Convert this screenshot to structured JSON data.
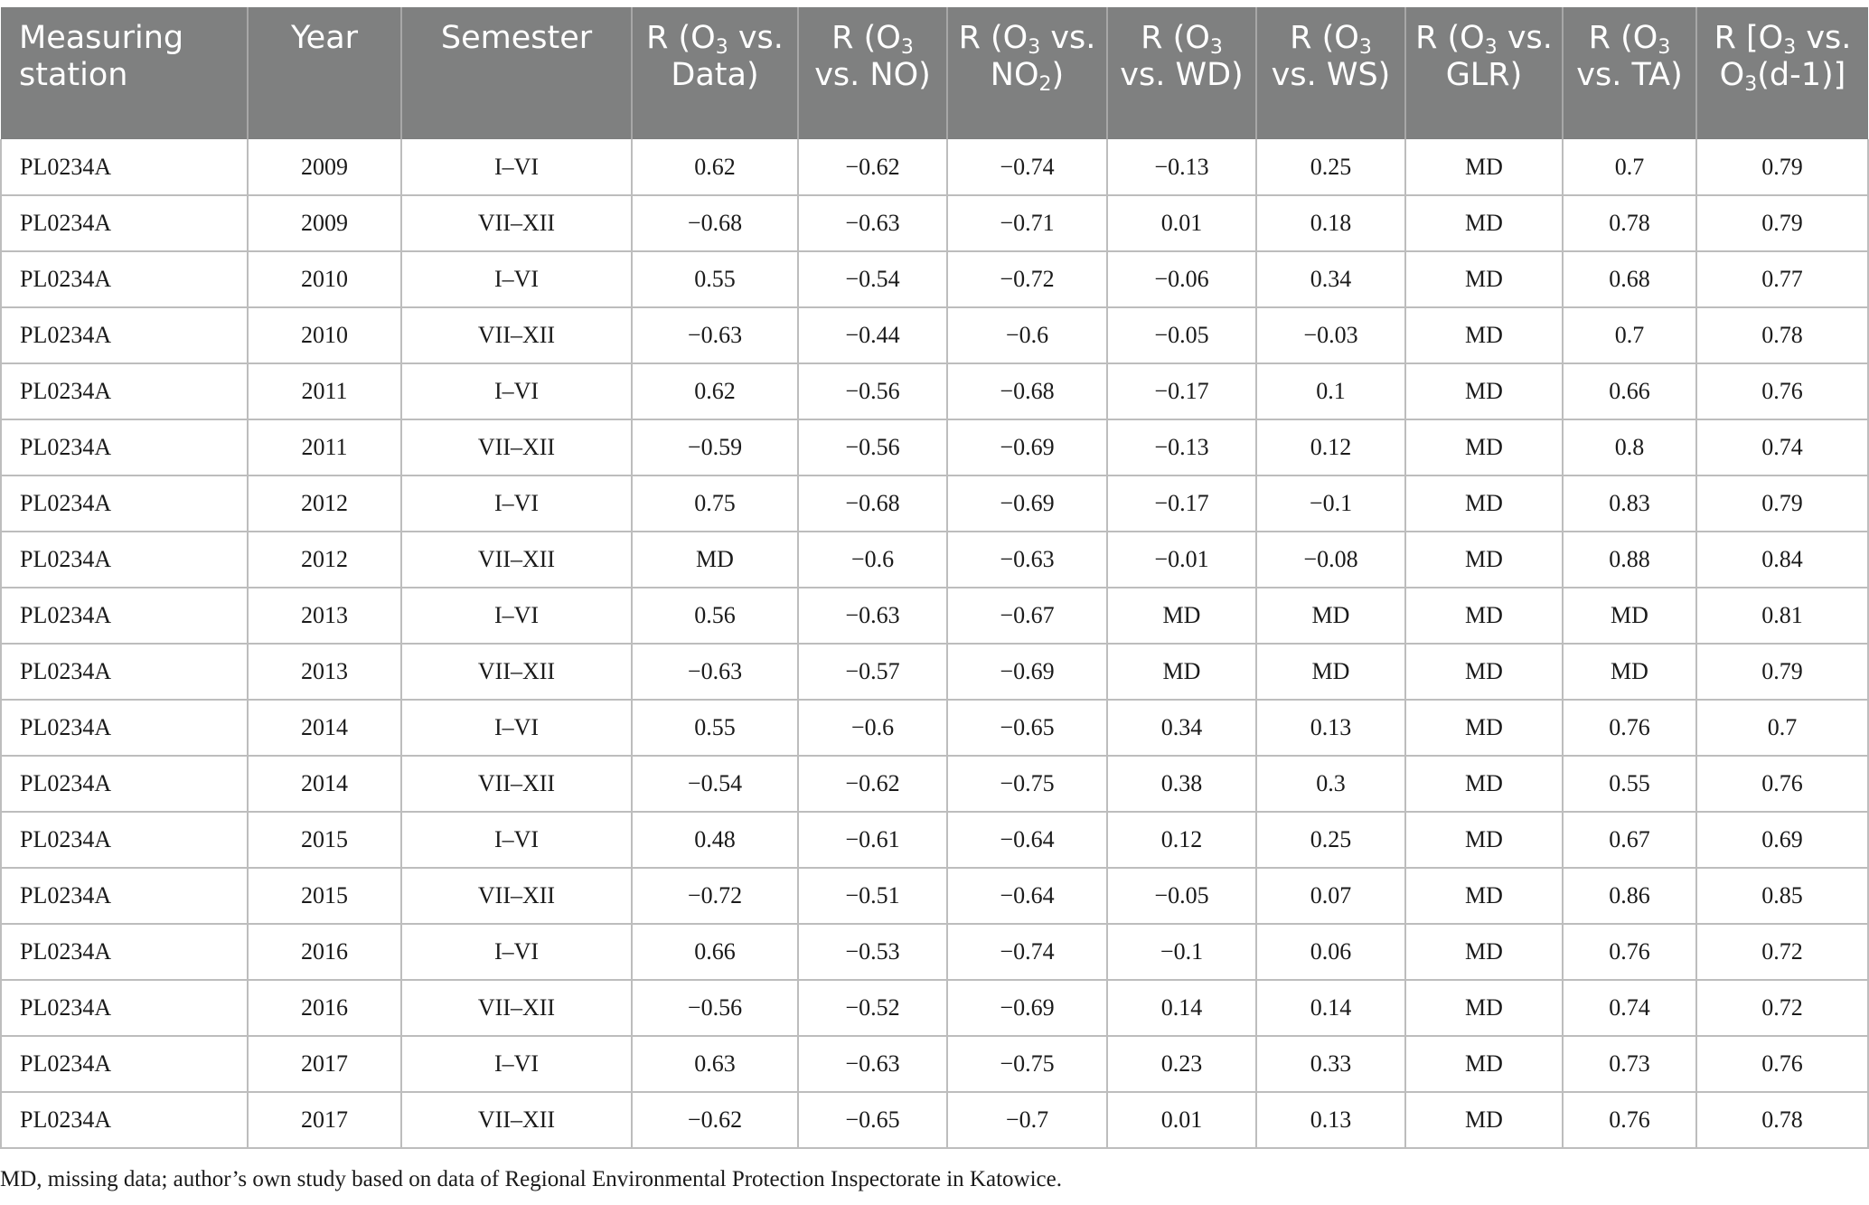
{
  "table": {
    "headers": {
      "station": "Measuring station",
      "year": "Year",
      "semester": "Semester",
      "r_data": {
        "pre": "R (O",
        "sub": "3",
        "post": " vs. Data)"
      },
      "r_no": {
        "pre": "R (O",
        "sub": "3",
        "post": " vs. NO)"
      },
      "r_no2": {
        "pre": "R (O",
        "sub": "3",
        "mid": " vs. NO",
        "sub2": "2",
        "post": ")"
      },
      "r_wd": {
        "pre": "R (O",
        "sub": "3",
        "post": " vs. WD)"
      },
      "r_ws": {
        "pre": "R (O",
        "sub": "3",
        "post": " vs. WS)"
      },
      "r_glr": {
        "pre": "R (O",
        "sub": "3",
        "post": " vs. GLR)"
      },
      "r_ta": {
        "pre": "R (O",
        "sub": "3",
        "post": " vs. TA)"
      },
      "r_lag": {
        "pre": "R [O",
        "sub": "3",
        "mid": " vs. O",
        "sub2": "3",
        "post": "(d-1)]"
      }
    },
    "rows": [
      [
        "PL0234A",
        "2009",
        "I–VI",
        "0.62",
        "−0.62",
        "−0.74",
        "−0.13",
        "0.25",
        "MD",
        "0.7",
        "0.79"
      ],
      [
        "PL0234A",
        "2009",
        "VII–XII",
        "−0.68",
        "−0.63",
        "−0.71",
        "0.01",
        "0.18",
        "MD",
        "0.78",
        "0.79"
      ],
      [
        "PL0234A",
        "2010",
        "I–VI",
        "0.55",
        "−0.54",
        "−0.72",
        "−0.06",
        "0.34",
        "MD",
        "0.68",
        "0.77"
      ],
      [
        "PL0234A",
        "2010",
        "VII–XII",
        "−0.63",
        "−0.44",
        "−0.6",
        "−0.05",
        "−0.03",
        "MD",
        "0.7",
        "0.78"
      ],
      [
        "PL0234A",
        "2011",
        "I–VI",
        "0.62",
        "−0.56",
        "−0.68",
        "−0.17",
        "0.1",
        "MD",
        "0.66",
        "0.76"
      ],
      [
        "PL0234A",
        "2011",
        "VII–XII",
        "−0.59",
        "−0.56",
        "−0.69",
        "−0.13",
        "0.12",
        "MD",
        "0.8",
        "0.74"
      ],
      [
        "PL0234A",
        "2012",
        "I–VI",
        "0.75",
        "−0.68",
        "−0.69",
        "−0.17",
        "−0.1",
        "MD",
        "0.83",
        "0.79"
      ],
      [
        "PL0234A",
        "2012",
        "VII–XII",
        "MD",
        "−0.6",
        "−0.63",
        "−0.01",
        "−0.08",
        "MD",
        "0.88",
        "0.84"
      ],
      [
        "PL0234A",
        "2013",
        "I–VI",
        "0.56",
        "−0.63",
        "−0.67",
        "MD",
        "MD",
        "MD",
        "MD",
        "0.81"
      ],
      [
        "PL0234A",
        "2013",
        "VII–XII",
        "−0.63",
        "−0.57",
        "−0.69",
        "MD",
        "MD",
        "MD",
        "MD",
        "0.79"
      ],
      [
        "PL0234A",
        "2014",
        "I–VI",
        "0.55",
        "−0.6",
        "−0.65",
        "0.34",
        "0.13",
        "MD",
        "0.76",
        "0.7"
      ],
      [
        "PL0234A",
        "2014",
        "VII–XII",
        "−0.54",
        "−0.62",
        "−0.75",
        "0.38",
        "0.3",
        "MD",
        "0.55",
        "0.76"
      ],
      [
        "PL0234A",
        "2015",
        "I–VI",
        "0.48",
        "−0.61",
        "−0.64",
        "0.12",
        "0.25",
        "MD",
        "0.67",
        "0.69"
      ],
      [
        "PL0234A",
        "2015",
        "VII–XII",
        "−0.72",
        "−0.51",
        "−0.64",
        "−0.05",
        "0.07",
        "MD",
        "0.86",
        "0.85"
      ],
      [
        "PL0234A",
        "2016",
        "I–VI",
        "0.66",
        "−0.53",
        "−0.74",
        "−0.1",
        "0.06",
        "MD",
        "0.76",
        "0.72"
      ],
      [
        "PL0234A",
        "2016",
        "VII–XII",
        "−0.56",
        "−0.52",
        "−0.69",
        "0.14",
        "0.14",
        "MD",
        "0.74",
        "0.72"
      ],
      [
        "PL0234A",
        "2017",
        "I–VI",
        "0.63",
        "−0.63",
        "−0.75",
        "0.23",
        "0.33",
        "MD",
        "0.73",
        "0.76"
      ],
      [
        "PL0234A",
        "2017",
        "VII–XII",
        "−0.62",
        "−0.65",
        "−0.7",
        "0.01",
        "0.13",
        "MD",
        "0.76",
        "0.78"
      ]
    ]
  },
  "footnote": "MD, missing data; author’s own study based on data of Regional Environmental Protection Inspectorate in Katowice.",
  "colors": {
    "header_bg": "#7f8080",
    "header_text": "#ffffff",
    "grid": "#bdbdbd"
  }
}
